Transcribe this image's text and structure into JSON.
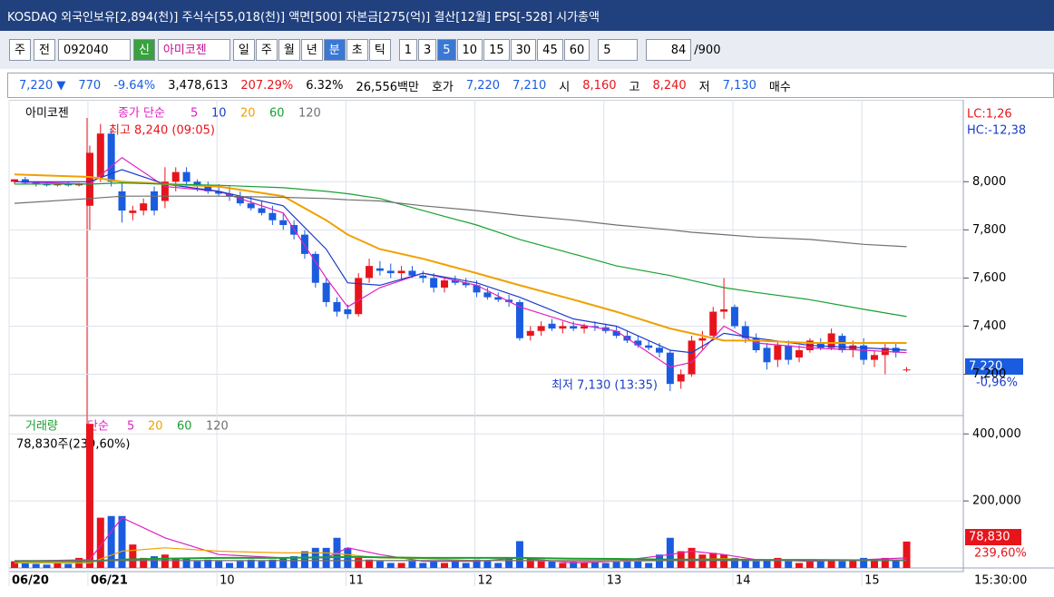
{
  "title_bar": "KOSDAQ 외국인보유[2,894(천)] 주식수[55,018(천)] 액면[500] 자본금[275(억)] 결산[12월] EPS[-528] 시가총액",
  "toolbar": {
    "market": "주",
    "mode": "전",
    "code": "092040",
    "badge": "신",
    "name": "아미코젠",
    "periods": [
      "일",
      "주",
      "월",
      "년",
      "분",
      "초",
      "틱"
    ],
    "active_period": 4,
    "intervals": [
      "1",
      "3",
      "5",
      "10",
      "15",
      "30",
      "45",
      "60"
    ],
    "active_interval": 2,
    "interval": "5",
    "view": "84",
    "total": "/900"
  },
  "info": [
    {
      "text": "7,220 ▼",
      "color": "#1a5ce0"
    },
    {
      "text": "770",
      "color": "#1a5ce0"
    },
    {
      "text": "-9.64%",
      "color": "#1a5ce0"
    },
    {
      "text": "3,478,613",
      "color": "#000000"
    },
    {
      "text": "207.29%",
      "color": "#e8141c"
    },
    {
      "text": "6.32%",
      "color": "#000000"
    },
    {
      "text": "26,556백만",
      "color": "#000000"
    },
    {
      "text": "호가",
      "color": "#000000"
    },
    {
      "text": "7,220",
      "color": "#1a5ce0"
    },
    {
      "text": "7,210",
      "color": "#1a5ce0"
    },
    {
      "text": "시",
      "color": "#000000"
    },
    {
      "text": "8,160",
      "color": "#e8141c"
    },
    {
      "text": "고",
      "color": "#000000"
    },
    {
      "text": "8,240",
      "color": "#e8141c"
    },
    {
      "text": "저",
      "color": "#000000"
    },
    {
      "text": "7,130",
      "color": "#1a5ce0"
    },
    {
      "text": "매수",
      "color": "#000000"
    }
  ],
  "price_chart": {
    "type": "candlestick",
    "name": "아미코젠",
    "ma_label": "종가 단순",
    "up_color": "#e8141c",
    "down_color": "#1a5ce0",
    "categories": [
      "06/20",
      null,
      null,
      null,
      null,
      null,
      null,
      "06/21",
      null,
      null,
      null,
      null,
      null,
      null,
      null,
      null,
      null,
      null,
      null,
      "10",
      null,
      null,
      null,
      null,
      null,
      null,
      null,
      null,
      null,
      null,
      null,
      "11",
      null,
      null,
      null,
      null,
      null,
      null,
      null,
      null,
      null,
      null,
      null,
      "12",
      null,
      null,
      null,
      null,
      null,
      null,
      null,
      null,
      null,
      null,
      null,
      "13",
      null,
      null,
      null,
      null,
      null,
      null,
      null,
      null,
      null,
      null,
      null,
      "14",
      null,
      null,
      null,
      null,
      null,
      null,
      null,
      null,
      null,
      null,
      null,
      "15",
      null,
      null,
      null,
      null
    ],
    "open": [
      8000,
      8010,
      7995,
      7990,
      7985,
      7990,
      7985,
      7900,
      8020,
      8200,
      7960,
      7870,
      7880,
      7960,
      7920,
      8000,
      8040,
      8000,
      7980,
      7960,
      7950,
      7940,
      7910,
      7890,
      7870,
      7840,
      7820,
      7780,
      7700,
      7580,
      7500,
      7470,
      7450,
      7600,
      7640,
      7630,
      7620,
      7630,
      7610,
      7600,
      7560,
      7590,
      7580,
      7570,
      7540,
      7520,
      7510,
      7500,
      7360,
      7380,
      7410,
      7390,
      7400,
      7390,
      7400,
      7395,
      7380,
      7360,
      7340,
      7320,
      7310,
      7290,
      7170,
      7200,
      7340,
      7360,
      7460,
      7480,
      7400,
      7350,
      7310,
      7260,
      7320,
      7270,
      7300,
      7330,
      7310,
      7360,
      7300,
      7320,
      7260,
      7280,
      7310,
      7220
    ],
    "high": [
      8010,
      8020,
      8000,
      8000,
      7995,
      8000,
      7995,
      8150,
      8240,
      8220,
      8000,
      7900,
      7930,
      7980,
      8060,
      8060,
      8060,
      8010,
      8000,
      7990,
      7980,
      7960,
      7940,
      7920,
      7900,
      7870,
      7840,
      7800,
      7710,
      7600,
      7520,
      7490,
      7620,
      7680,
      7670,
      7660,
      7650,
      7650,
      7630,
      7620,
      7600,
      7610,
      7600,
      7590,
      7560,
      7540,
      7530,
      7510,
      7400,
      7420,
      7430,
      7420,
      7420,
      7410,
      7420,
      7410,
      7400,
      7380,
      7360,
      7340,
      7330,
      7300,
      7220,
      7360,
      7380,
      7480,
      7600,
      7490,
      7420,
      7370,
      7330,
      7340,
      7340,
      7320,
      7350,
      7350,
      7390,
      7370,
      7340,
      7350,
      7300,
      7330,
      7330,
      7230
    ],
    "low": [
      7990,
      7990,
      7980,
      7980,
      7980,
      7980,
      7980,
      7800,
      8000,
      7980,
      7830,
      7840,
      7860,
      7860,
      7890,
      7960,
      7980,
      7960,
      7950,
      7940,
      7920,
      7900,
      7880,
      7860,
      7820,
      7800,
      7760,
      7680,
      7560,
      7480,
      7440,
      7430,
      7440,
      7580,
      7610,
      7600,
      7590,
      7600,
      7580,
      7540,
      7540,
      7570,
      7560,
      7520,
      7510,
      7500,
      7480,
      7340,
      7340,
      7360,
      7380,
      7370,
      7380,
      7370,
      7380,
      7370,
      7350,
      7330,
      7310,
      7300,
      7270,
      7130,
      7140,
      7190,
      7300,
      7340,
      7430,
      7390,
      7330,
      7290,
      7220,
      7230,
      7240,
      7250,
      7290,
      7300,
      7300,
      7290,
      7270,
      7240,
      7230,
      7200,
      7270,
      7210
    ],
    "close": [
      8010,
      7995,
      7990,
      7985,
      7990,
      7985,
      7990,
      8120,
      8200,
      8000,
      7880,
      7880,
      7910,
      7880,
      8000,
      8040,
      8000,
      7980,
      7960,
      7950,
      7940,
      7910,
      7890,
      7870,
      7840,
      7820,
      7780,
      7700,
      7580,
      7500,
      7460,
      7450,
      7600,
      7650,
      7630,
      7620,
      7630,
      7610,
      7600,
      7560,
      7590,
      7580,
      7570,
      7540,
      7520,
      7510,
      7500,
      7350,
      7380,
      7400,
      7390,
      7400,
      7390,
      7400,
      7395,
      7380,
      7360,
      7340,
      7320,
      7310,
      7290,
      7160,
      7200,
      7340,
      7350,
      7460,
      7470,
      7400,
      7350,
      7300,
      7250,
      7320,
      7260,
      7300,
      7340,
      7310,
      7370,
      7300,
      7320,
      7260,
      7280,
      7310,
      7290,
      7220
    ],
    "ylim": [
      7040,
      8310
    ],
    "yticks": [
      {
        "value": 7200,
        "label": "7,200"
      },
      {
        "value": 7400,
        "label": "7,400"
      },
      {
        "value": 7600,
        "label": "7,600"
      },
      {
        "value": 7800,
        "label": "7,800"
      },
      {
        "value": 8000,
        "label": "8,000"
      }
    ],
    "ma_x": [
      0,
      7,
      10,
      14,
      19,
      25,
      29,
      31,
      34,
      38,
      43,
      47,
      52,
      56,
      61,
      63,
      66,
      69,
      74,
      79,
      83
    ],
    "series": [
      {
        "name": "5",
        "color": "#e020c0",
        "values": [
          8000,
          7990,
          8100,
          7980,
          7960,
          7870,
          7600,
          7480,
          7560,
          7620,
          7570,
          7480,
          7410,
          7380,
          7230,
          7250,
          7400,
          7330,
          7310,
          7300,
          7290
        ]
      },
      {
        "name": "10",
        "color": "#1a3cc8",
        "values": [
          8000,
          8000,
          8050,
          7990,
          7960,
          7900,
          7720,
          7580,
          7570,
          7620,
          7580,
          7520,
          7430,
          7400,
          7300,
          7290,
          7370,
          7350,
          7320,
          7310,
          7300
        ]
      },
      {
        "name": "20",
        "color": "#f0a000",
        "values": [
          8030,
          8020,
          8000,
          7990,
          7980,
          7940,
          7840,
          7780,
          7720,
          7680,
          7620,
          7570,
          7510,
          7460,
          7390,
          7370,
          7340,
          7340,
          7330,
          7330,
          7330
        ]
      },
      {
        "name": "60",
        "color": "#18a030",
        "values": [
          7990,
          7990,
          7995,
          7990,
          7985,
          7975,
          7960,
          7950,
          7930,
          7880,
          7820,
          7760,
          7700,
          7650,
          7610,
          7590,
          7560,
          7540,
          7510,
          7470,
          7440
        ]
      },
      {
        "name": "120",
        "color": "#707070",
        "values": [
          7910,
          7930,
          7940,
          7940,
          7940,
          7935,
          7930,
          7925,
          7920,
          7900,
          7880,
          7860,
          7840,
          7820,
          7800,
          7790,
          7780,
          7770,
          7760,
          7740,
          7730
        ]
      }
    ],
    "high_note": "최고 8,240 (09:05)",
    "low_note": "최저 7,130 (13:35)",
    "lc": "LC:1,26",
    "hc": "HC:-12,38",
    "last_label": "7,220",
    "change_label": "-0,96%"
  },
  "volume_chart": {
    "type": "bar",
    "name": "거래량",
    "ma_label": "단순",
    "values": [
      20000,
      15000,
      12000,
      10000,
      15000,
      12000,
      30000,
      430000,
      150000,
      155000,
      155000,
      70000,
      30000,
      35000,
      40000,
      30000,
      30000,
      20000,
      25000,
      20000,
      15000,
      20000,
      25000,
      20000,
      25000,
      30000,
      35000,
      50000,
      60000,
      60000,
      90000,
      60000,
      30000,
      25000,
      20000,
      15000,
      15000,
      20000,
      15000,
      20000,
      15000,
      20000,
      15000,
      25000,
      20000,
      15000,
      30000,
      80000,
      30000,
      25000,
      20000,
      15000,
      20000,
      15000,
      20000,
      15000,
      20000,
      25000,
      20000,
      15000,
      40000,
      90000,
      50000,
      60000,
      40000,
      45000,
      40000,
      30000,
      25000,
      20000,
      25000,
      30000,
      20000,
      15000,
      25000,
      20000,
      25000,
      20000,
      25000,
      30000,
      25000,
      30000,
      25000,
      78830
    ],
    "ylim": [
      0,
      444000
    ],
    "yticks": [
      {
        "value": 200000,
        "label": "200,000"
      },
      {
        "value": 400000,
        "label": "400,000"
      }
    ],
    "series": [
      {
        "name": "5",
        "color": "#e020c0",
        "values": [
          20000,
          25000,
          150000,
          90000,
          40000,
          30000,
          30000,
          60000,
          40000,
          20000,
          20000,
          30000,
          15000,
          20000,
          40000,
          50000,
          40000,
          25000,
          20000,
          25000,
          30000
        ]
      },
      {
        "name": "20",
        "color": "#f0a000",
        "values": [
          15000,
          15000,
          50000,
          60000,
          50000,
          45000,
          45000,
          40000,
          30000,
          28000,
          22000,
          22000,
          20000,
          20000,
          22000,
          25000,
          28000,
          25000,
          22000,
          22000,
          24000
        ]
      },
      {
        "name": "60",
        "color": "#18a030",
        "values": [
          20000,
          20000,
          25000,
          28000,
          30000,
          30000,
          32000,
          33000,
          32000,
          30000,
          30000,
          30000,
          28000,
          27000,
          25000,
          25000,
          25000,
          24000,
          24000,
          23000,
          23000
        ]
      },
      {
        "name": "120",
        "color": "#707070",
        "values": [
          22000,
          22000,
          22000,
          22000,
          22000,
          22000,
          22000,
          22000,
          22000,
          22000,
          22000,
          22000,
          22000,
          22000,
          22000,
          22000,
          22000,
          22000,
          22000,
          22000,
          22000
        ]
      }
    ],
    "info_label": "78,830주(239,60%)",
    "last_label": "78,830",
    "ratio_label": "239,60%"
  },
  "time_label": "15:30:00"
}
